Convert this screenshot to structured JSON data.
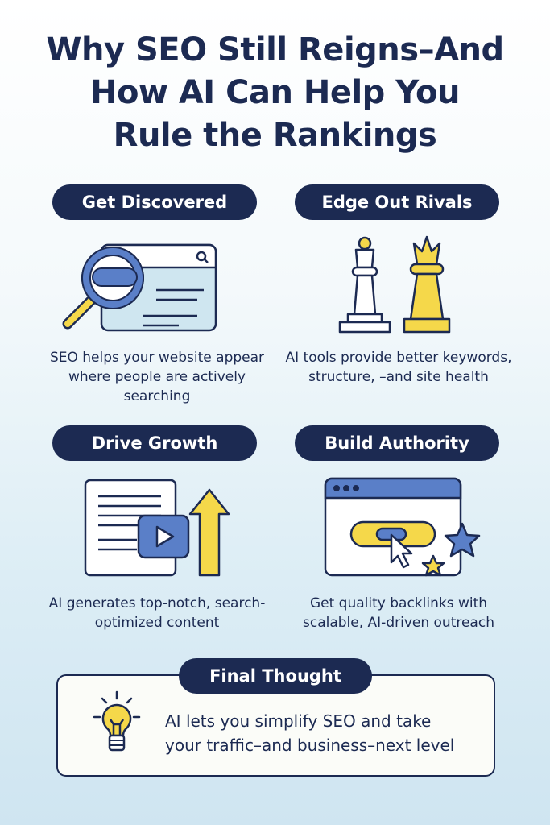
{
  "title": {
    "lines": [
      "Why SEO Still Reigns–And",
      "How AI Can Help You",
      "Rule the Rankings"
    ]
  },
  "sections": [
    {
      "heading": "Get Discovered",
      "icon": "magnifier-browser-icon",
      "text": "SEO helps your website appear where people are actively searching"
    },
    {
      "heading": "Edge Out Rivals",
      "icon": "chess-pieces-icon",
      "text": "AI tools provide better keywords, structure, –and site health"
    },
    {
      "heading": "Drive Growth",
      "icon": "content-growth-icon",
      "text": "AI generates top-notch, search-optimized content"
    },
    {
      "heading": "Build Authority",
      "icon": "browser-link-stars-icon",
      "text": "Get quality backlinks with scalable, AI-driven outreach"
    }
  ],
  "final": {
    "heading": "Final Thought",
    "icon": "lightbulb-icon",
    "lines": [
      "AI lets you simplify SEO and take",
      "your traffic–and business–next level"
    ]
  },
  "colors": {
    "navy": "#1c2a52",
    "yellow": "#f5d84a",
    "blue": "#5a7fc8",
    "light_blue": "#cfe6f0"
  }
}
